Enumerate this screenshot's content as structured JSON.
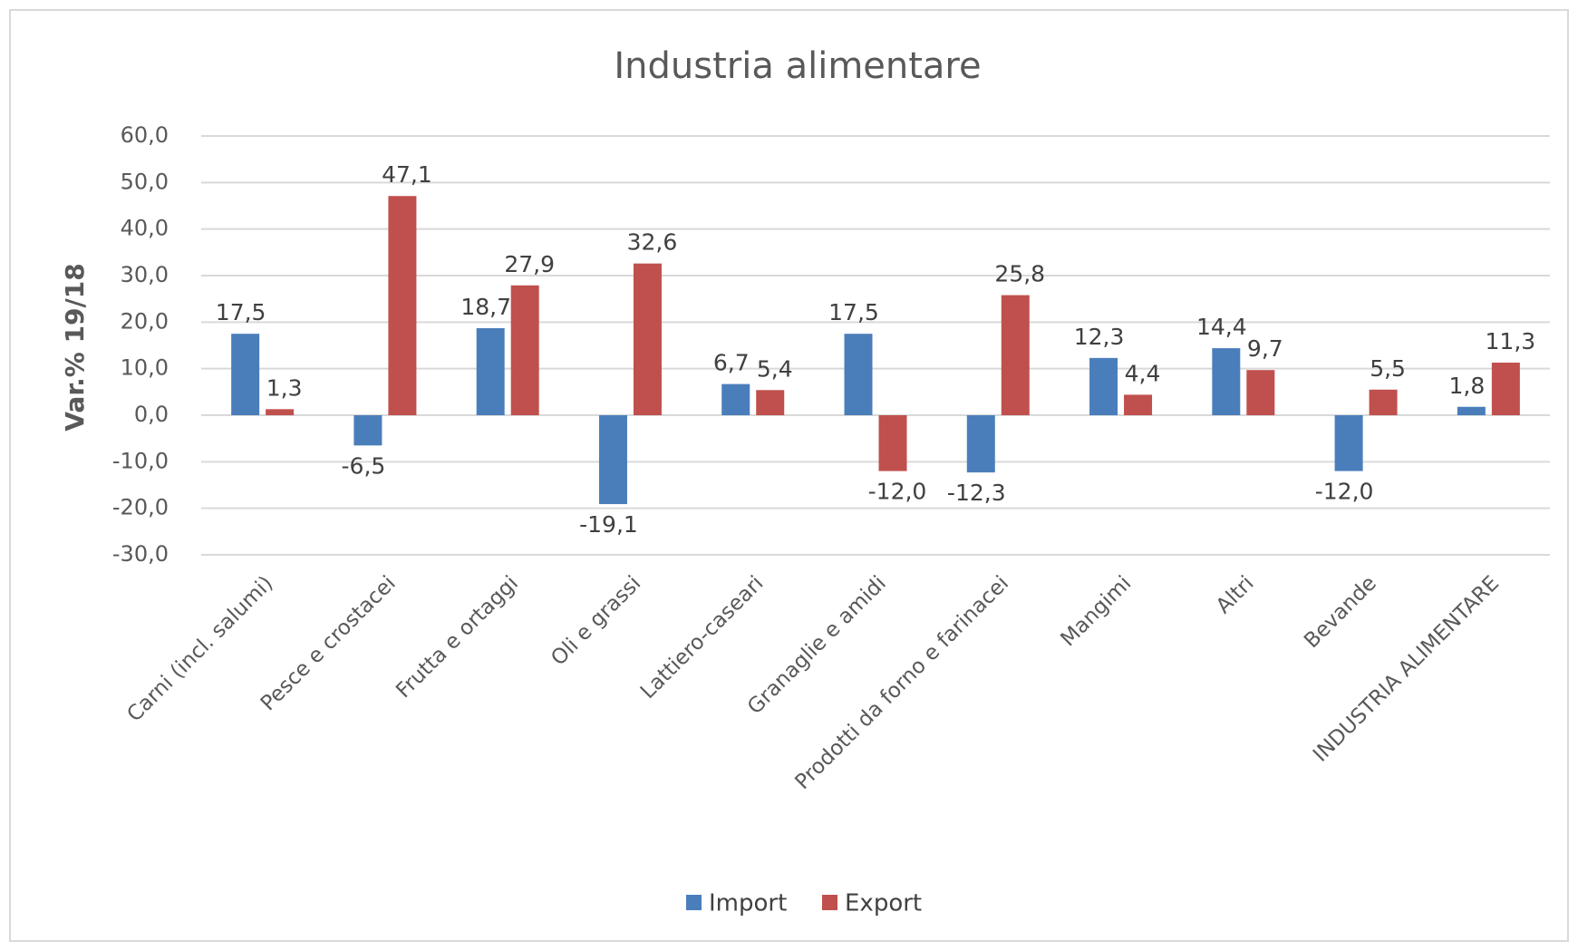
{
  "chart_data": {
    "type": "bar",
    "title": "Industria alimentare",
    "y_label": "Var.% 19/18",
    "categories": [
      "Carni (incl. salumi)",
      "Pesce e crostacei",
      "Frutta e ortaggi",
      "Oli e grassi",
      "Lattiero-caseari",
      "Granaglie e amidi",
      "Prodotti da forno e farinacei",
      "Mangimi",
      "Altri",
      "Bevande",
      "INDUSTRIA ALIMENTARE"
    ],
    "series": [
      {
        "name": "Import",
        "color": "#4a7ebb",
        "values": [
          17.5,
          -6.5,
          18.7,
          -19.1,
          6.7,
          17.5,
          -12.3,
          12.3,
          14.4,
          -12.0,
          1.8
        ],
        "value_labels": [
          "17,5",
          "-6,5",
          "18,7",
          "-19,1",
          "6,7",
          "17,5",
          "-12,3",
          "12,3",
          "14,4",
          "-12,0",
          "1,8"
        ]
      },
      {
        "name": "Export",
        "color": "#c0504d",
        "values": [
          1.3,
          47.1,
          27.9,
          32.6,
          5.4,
          -12.0,
          25.8,
          4.4,
          9.7,
          5.5,
          11.3
        ],
        "value_labels": [
          "1,3",
          "47,1",
          "27,9",
          "32,6",
          "5,4",
          "-12,0",
          "25,8",
          "4,4",
          "9,7",
          "5,5",
          "11,3"
        ]
      }
    ],
    "ylim": [
      -30,
      60
    ],
    "yticks": [
      {
        "value": -30,
        "label": "-30,0"
      },
      {
        "value": -20,
        "label": "-20,0"
      },
      {
        "value": -10,
        "label": "-10,0"
      },
      {
        "value": 0,
        "label": "0,0"
      },
      {
        "value": 10,
        "label": "10,0"
      },
      {
        "value": 20,
        "label": "20,0"
      },
      {
        "value": 30,
        "label": "30,0"
      },
      {
        "value": 40,
        "label": "40,0"
      },
      {
        "value": 50,
        "label": "50,0"
      },
      {
        "value": 60,
        "label": "60,0"
      }
    ],
    "grid": true,
    "legend": "bottom"
  }
}
